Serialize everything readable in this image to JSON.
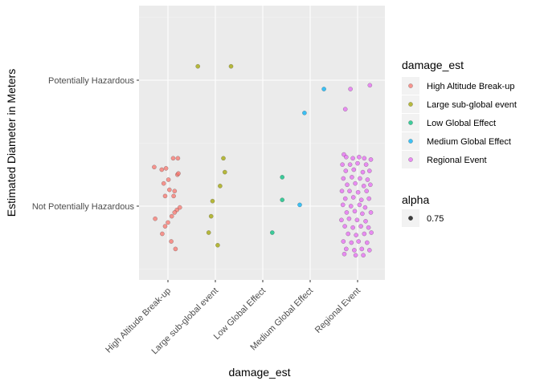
{
  "chart_data": {
    "type": "scatter",
    "title": "",
    "xlabel": "damage_est",
    "ylabel": "Estimated Diameter in Meters",
    "x_categories": [
      "High Altitude Break-up",
      "Large sub-global event",
      "Low Global Effect",
      "Medium Global Effect",
      "Regional Event"
    ],
    "y_categories": [
      "Not Potentially Hazardous",
      "Potentially Hazardous"
    ],
    "jitter": true,
    "grid": true,
    "legend_position": "right",
    "legend": {
      "color_title": "damage_est",
      "color_entries": [
        {
          "label": "High Altitude Break-up",
          "color": "#F8766D"
        },
        {
          "label": "Large sub-global event",
          "color": "#A3A500"
        },
        {
          "label": "Low Global Effect",
          "color": "#00BF7D"
        },
        {
          "label": "Medium Global Effect",
          "color": "#00B0F6"
        },
        {
          "label": "Regional Event",
          "color": "#E76BF3"
        }
      ],
      "alpha_title": "alpha",
      "alpha_entries": [
        {
          "label": "0.75"
        }
      ]
    },
    "points": [
      {
        "series": "High Altitude Break-up",
        "x": 0.71,
        "y": 1.31
      },
      {
        "series": "High Altitude Break-up",
        "x": 0.87,
        "y": 1.29
      },
      {
        "series": "High Altitude Break-up",
        "x": 0.96,
        "y": 1.3
      },
      {
        "series": "High Altitude Break-up",
        "x": 1.11,
        "y": 1.38
      },
      {
        "series": "High Altitude Break-up",
        "x": 1.21,
        "y": 1.38
      },
      {
        "series": "High Altitude Break-up",
        "x": 1.2,
        "y": 1.25
      },
      {
        "series": "High Altitude Break-up",
        "x": 1.22,
        "y": 1.26
      },
      {
        "series": "High Altitude Break-up",
        "x": 1.01,
        "y": 1.21
      },
      {
        "series": "High Altitude Break-up",
        "x": 0.91,
        "y": 1.18
      },
      {
        "series": "High Altitude Break-up",
        "x": 1.03,
        "y": 1.13
      },
      {
        "series": "High Altitude Break-up",
        "x": 0.94,
        "y": 1.08
      },
      {
        "series": "High Altitude Break-up",
        "x": 1.14,
        "y": 1.12
      },
      {
        "series": "High Altitude Break-up",
        "x": 1.12,
        "y": 1.08
      },
      {
        "series": "High Altitude Break-up",
        "x": 1.19,
        "y": 0.97
      },
      {
        "series": "High Altitude Break-up",
        "x": 1.14,
        "y": 0.95
      },
      {
        "series": "High Altitude Break-up",
        "x": 1.25,
        "y": 0.99
      },
      {
        "series": "High Altitude Break-up",
        "x": 1.08,
        "y": 0.92
      },
      {
        "series": "High Altitude Break-up",
        "x": 0.73,
        "y": 0.9
      },
      {
        "series": "High Altitude Break-up",
        "x": 0.94,
        "y": 0.84
      },
      {
        "series": "High Altitude Break-up",
        "x": 1.0,
        "y": 0.87
      },
      {
        "series": "High Altitude Break-up",
        "x": 0.88,
        "y": 0.78
      },
      {
        "series": "High Altitude Break-up",
        "x": 1.07,
        "y": 0.72
      },
      {
        "series": "High Altitude Break-up",
        "x": 1.16,
        "y": 0.66
      },
      {
        "series": "Large sub-global event",
        "x": 1.63,
        "y": 2.11
      },
      {
        "series": "Large sub-global event",
        "x": 2.33,
        "y": 2.11
      },
      {
        "series": "Large sub-global event",
        "x": 2.17,
        "y": 1.38
      },
      {
        "series": "Large sub-global event",
        "x": 2.2,
        "y": 1.27
      },
      {
        "series": "Large sub-global event",
        "x": 2.1,
        "y": 1.16
      },
      {
        "series": "Large sub-global event",
        "x": 1.94,
        "y": 1.04
      },
      {
        "series": "Large sub-global event",
        "x": 1.91,
        "y": 0.92
      },
      {
        "series": "Large sub-global event",
        "x": 1.86,
        "y": 0.79
      },
      {
        "series": "Large sub-global event",
        "x": 2.05,
        "y": 0.69
      },
      {
        "series": "Low Global Effect",
        "x": 3.41,
        "y": 1.23
      },
      {
        "series": "Low Global Effect",
        "x": 3.41,
        "y": 1.05
      },
      {
        "series": "Low Global Effect",
        "x": 3.2,
        "y": 0.79
      },
      {
        "series": "Medium Global Effect",
        "x": 4.29,
        "y": 1.93
      },
      {
        "series": "Medium Global Effect",
        "x": 3.88,
        "y": 1.74
      },
      {
        "series": "Medium Global Effect",
        "x": 3.78,
        "y": 1.01
      },
      {
        "series": "Regional Event",
        "x": 4.85,
        "y": 1.93
      },
      {
        "series": "Regional Event",
        "x": 5.26,
        "y": 1.96
      },
      {
        "series": "Regional Event",
        "x": 4.74,
        "y": 1.77
      },
      {
        "series": "Regional Event",
        "x": 4.71,
        "y": 1.41
      },
      {
        "series": "Regional Event",
        "x": 4.76,
        "y": 1.39
      },
      {
        "series": "Regional Event",
        "x": 4.9,
        "y": 1.38
      },
      {
        "series": "Regional Event",
        "x": 5.03,
        "y": 1.39
      },
      {
        "series": "Regional Event",
        "x": 5.14,
        "y": 1.38
      },
      {
        "series": "Regional Event",
        "x": 5.28,
        "y": 1.37
      },
      {
        "series": "Regional Event",
        "x": 4.68,
        "y": 1.33
      },
      {
        "series": "Regional Event",
        "x": 4.84,
        "y": 1.33
      },
      {
        "series": "Regional Event",
        "x": 5.0,
        "y": 1.34
      },
      {
        "series": "Regional Event",
        "x": 5.18,
        "y": 1.33
      },
      {
        "series": "Regional Event",
        "x": 4.75,
        "y": 1.28
      },
      {
        "series": "Regional Event",
        "x": 4.92,
        "y": 1.29
      },
      {
        "series": "Regional Event",
        "x": 5.11,
        "y": 1.27
      },
      {
        "series": "Regional Event",
        "x": 5.25,
        "y": 1.28
      },
      {
        "series": "Regional Event",
        "x": 4.7,
        "y": 1.22
      },
      {
        "series": "Regional Event",
        "x": 4.88,
        "y": 1.23
      },
      {
        "series": "Regional Event",
        "x": 5.05,
        "y": 1.22
      },
      {
        "series": "Regional Event",
        "x": 5.21,
        "y": 1.21
      },
      {
        "series": "Regional Event",
        "x": 4.78,
        "y": 1.17
      },
      {
        "series": "Regional Event",
        "x": 4.95,
        "y": 1.18
      },
      {
        "series": "Regional Event",
        "x": 5.13,
        "y": 1.16
      },
      {
        "series": "Regional Event",
        "x": 5.27,
        "y": 1.17
      },
      {
        "series": "Regional Event",
        "x": 4.67,
        "y": 1.12
      },
      {
        "series": "Regional Event",
        "x": 4.83,
        "y": 1.12
      },
      {
        "series": "Regional Event",
        "x": 5.01,
        "y": 1.11
      },
      {
        "series": "Regional Event",
        "x": 5.19,
        "y": 1.12
      },
      {
        "series": "Regional Event",
        "x": 4.74,
        "y": 1.06
      },
      {
        "series": "Regional Event",
        "x": 4.91,
        "y": 1.07
      },
      {
        "series": "Regional Event",
        "x": 5.08,
        "y": 1.05
      },
      {
        "series": "Regional Event",
        "x": 5.24,
        "y": 1.06
      },
      {
        "series": "Regional Event",
        "x": 4.69,
        "y": 1.01
      },
      {
        "series": "Regional Event",
        "x": 4.86,
        "y": 1.0
      },
      {
        "series": "Regional Event",
        "x": 5.04,
        "y": 1.01
      },
      {
        "series": "Regional Event",
        "x": 5.16,
        "y": 0.99
      },
      {
        "series": "Regional Event",
        "x": 4.77,
        "y": 0.95
      },
      {
        "series": "Regional Event",
        "x": 4.94,
        "y": 0.96
      },
      {
        "series": "Regional Event",
        "x": 5.1,
        "y": 0.94
      },
      {
        "series": "Regional Event",
        "x": 5.28,
        "y": 0.95
      },
      {
        "series": "Regional Event",
        "x": 4.66,
        "y": 0.89
      },
      {
        "series": "Regional Event",
        "x": 4.82,
        "y": 0.9
      },
      {
        "series": "Regional Event",
        "x": 4.99,
        "y": 0.89
      },
      {
        "series": "Regional Event",
        "x": 5.17,
        "y": 0.88
      },
      {
        "series": "Regional Event",
        "x": 4.73,
        "y": 0.84
      },
      {
        "series": "Regional Event",
        "x": 4.9,
        "y": 0.83
      },
      {
        "series": "Regional Event",
        "x": 5.07,
        "y": 0.84
      },
      {
        "series": "Regional Event",
        "x": 5.23,
        "y": 0.83
      },
      {
        "series": "Regional Event",
        "x": 4.8,
        "y": 0.78
      },
      {
        "series": "Regional Event",
        "x": 4.97,
        "y": 0.77
      },
      {
        "series": "Regional Event",
        "x": 5.14,
        "y": 0.78
      },
      {
        "series": "Regional Event",
        "x": 5.29,
        "y": 0.79
      },
      {
        "series": "Regional Event",
        "x": 4.7,
        "y": 0.72
      },
      {
        "series": "Regional Event",
        "x": 4.87,
        "y": 0.71
      },
      {
        "series": "Regional Event",
        "x": 5.02,
        "y": 0.72
      },
      {
        "series": "Regional Event",
        "x": 5.2,
        "y": 0.71
      },
      {
        "series": "Regional Event",
        "x": 4.76,
        "y": 0.66
      },
      {
        "series": "Regional Event",
        "x": 4.93,
        "y": 0.65
      },
      {
        "series": "Regional Event",
        "x": 5.09,
        "y": 0.66
      },
      {
        "series": "Regional Event",
        "x": 5.25,
        "y": 0.65
      },
      {
        "series": "Regional Event",
        "x": 4.72,
        "y": 0.62
      },
      {
        "series": "Regional Event",
        "x": 4.96,
        "y": 0.61
      },
      {
        "series": "Regional Event",
        "x": 5.12,
        "y": 0.61
      }
    ]
  }
}
